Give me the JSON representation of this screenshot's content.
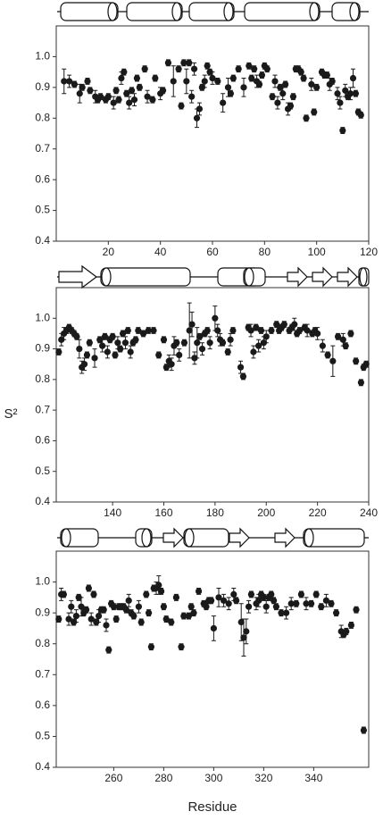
{
  "chart_data": [
    {
      "type": "scatter",
      "x": [
        3,
        5,
        7,
        9,
        10,
        12,
        13,
        15,
        16,
        17,
        19,
        20,
        22,
        23,
        24,
        25,
        26,
        27,
        28,
        29,
        30,
        31,
        32,
        34,
        35,
        37,
        38,
        40,
        41,
        43,
        45,
        47,
        48,
        49,
        50,
        51,
        52,
        53,
        54,
        55,
        56,
        57,
        58,
        59,
        60,
        62,
        64,
        66,
        67,
        68,
        70,
        72,
        74,
        75,
        76,
        77,
        78,
        79,
        80,
        81,
        83,
        84,
        85,
        86,
        87,
        88,
        89,
        90,
        91,
        92,
        93,
        94,
        95,
        96,
        98,
        99,
        100,
        102,
        103,
        104,
        105,
        106,
        108,
        109,
        110,
        111,
        112,
        113,
        114,
        115,
        116,
        117
      ],
      "values": [
        0.92,
        0.92,
        0.91,
        0.88,
        0.9,
        0.92,
        0.89,
        0.87,
        0.86,
        0.87,
        0.86,
        0.87,
        0.85,
        0.89,
        0.86,
        0.93,
        0.95,
        0.88,
        0.85,
        0.89,
        0.86,
        0.93,
        0.9,
        0.96,
        0.87,
        0.86,
        0.93,
        0.88,
        0.89,
        0.98,
        0.92,
        0.96,
        0.84,
        0.98,
        0.92,
        0.98,
        0.87,
        0.96,
        0.8,
        0.83,
        0.9,
        0.92,
        0.97,
        0.95,
        0.93,
        0.92,
        0.85,
        0.9,
        0.88,
        0.93,
        0.96,
        0.9,
        0.97,
        0.93,
        0.96,
        0.92,
        0.91,
        0.94,
        0.97,
        0.96,
        0.87,
        0.92,
        0.85,
        0.9,
        0.88,
        0.91,
        0.83,
        0.84,
        0.87,
        0.96,
        0.96,
        0.95,
        0.93,
        0.8,
        0.91,
        0.82,
        0.9,
        0.95,
        0.94,
        0.94,
        0.91,
        0.92,
        0.88,
        0.85,
        0.76,
        0.89,
        0.87,
        0.88,
        0.93,
        0.88,
        0.82,
        0.81
      ],
      "errors": [
        0.04,
        0.02,
        0.01,
        0.03,
        0.01,
        0.01,
        0.01,
        0.02,
        0.01,
        0.01,
        0.01,
        0.01,
        0.02,
        0.01,
        0.01,
        0.02,
        0.01,
        0.01,
        0.02,
        0.01,
        0.02,
        0.01,
        0.01,
        0.01,
        0.02,
        0.01,
        0.01,
        0.02,
        0.01,
        0.01,
        0.05,
        0.01,
        0.01,
        0.01,
        0.04,
        0.01,
        0.02,
        0.02,
        0.03,
        0.02,
        0.01,
        0.02,
        0.01,
        0.01,
        0.02,
        0.01,
        0.03,
        0.03,
        0.01,
        0.01,
        0.01,
        0.03,
        0.01,
        0.01,
        0.01,
        0.02,
        0.01,
        0.01,
        0.01,
        0.01,
        0.01,
        0.02,
        0.02,
        0.01,
        0.02,
        0.01,
        0.02,
        0.01,
        0.01,
        0.01,
        0.01,
        0.01,
        0.01,
        0.01,
        0.02,
        0.01,
        0.01,
        0.01,
        0.01,
        0.01,
        0.02,
        0.01,
        0.02,
        0.02,
        0.01,
        0.02,
        0.01,
        0.02,
        0.03,
        0.01,
        0.01,
        0.01
      ],
      "color": "#1a1a1a",
      "xlim": [
        0,
        120
      ],
      "xticks": [
        20,
        40,
        60,
        80,
        100,
        120
      ],
      "ylim": [
        0.4,
        1.1
      ],
      "yticks": [
        0.4,
        0.5,
        0.6,
        0.7,
        0.8,
        0.9,
        {
          "value": 1,
          "label": "1.0"
        }
      ]
    },
    {
      "type": "scatter",
      "y_label": "S²",
      "x": [
        119,
        120,
        121,
        122,
        123,
        124,
        125,
        126,
        127,
        128,
        129,
        130,
        131,
        133,
        135,
        136,
        137,
        138,
        139,
        140,
        141,
        142,
        143,
        144,
        145,
        146,
        147,
        148,
        149,
        150,
        152,
        154,
        156,
        158,
        160,
        161,
        162,
        163,
        164,
        165,
        166,
        168,
        170,
        171,
        172,
        173,
        174,
        175,
        176,
        177,
        178,
        180,
        181,
        182,
        183,
        185,
        186,
        187,
        190,
        191,
        193,
        194,
        195,
        196,
        197,
        198,
        199,
        200,
        202,
        204,
        205,
        206,
        207,
        209,
        210,
        211,
        212,
        213,
        215,
        216,
        218,
        219,
        220,
        222,
        224,
        226,
        228,
        230,
        231,
        233,
        235,
        237,
        238,
        239
      ],
      "values": [
        0.89,
        0.93,
        0.95,
        0.96,
        0.97,
        0.96,
        0.95,
        0.94,
        0.9,
        0.84,
        0.85,
        0.88,
        0.92,
        0.87,
        0.93,
        0.91,
        0.94,
        0.89,
        0.93,
        0.94,
        0.88,
        0.92,
        0.9,
        0.95,
        0.92,
        0.96,
        0.89,
        0.92,
        0.93,
        0.96,
        0.95,
        0.96,
        0.96,
        0.88,
        0.93,
        0.84,
        0.86,
        0.85,
        0.91,
        0.92,
        0.88,
        0.92,
        0.96,
        0.98,
        0.87,
        0.92,
        0.94,
        0.9,
        0.95,
        0.96,
        0.92,
        1.0,
        0.96,
        0.93,
        0.92,
        0.89,
        0.93,
        0.96,
        0.84,
        0.81,
        0.97,
        0.96,
        0.89,
        0.97,
        0.91,
        0.96,
        0.92,
        0.94,
        0.96,
        0.98,
        0.96,
        0.97,
        0.98,
        0.96,
        0.97,
        0.98,
        0.95,
        0.96,
        0.97,
        0.96,
        0.95,
        0.96,
        0.95,
        0.91,
        0.88,
        0.86,
        0.94,
        0.93,
        0.91,
        0.95,
        0.86,
        0.79,
        0.84,
        0.85
      ],
      "errors": [
        0.01,
        0.02,
        0.02,
        0.01,
        0.01,
        0.01,
        0.01,
        0.01,
        0.03,
        0.02,
        0.02,
        0.01,
        0.01,
        0.03,
        0.01,
        0.02,
        0.01,
        0.02,
        0.01,
        0.01,
        0.01,
        0.02,
        0.01,
        0.01,
        0.02,
        0.01,
        0.02,
        0.01,
        0.01,
        0.01,
        0.01,
        0.01,
        0.01,
        0.01,
        0.01,
        0.01,
        0.02,
        0.02,
        0.03,
        0.01,
        0.02,
        0.01,
        0.09,
        0.04,
        0.02,
        0.05,
        0.01,
        0.02,
        0.01,
        0.01,
        0.02,
        0.04,
        0.02,
        0.02,
        0.01,
        0.01,
        0.02,
        0.01,
        0.02,
        0.01,
        0.01,
        0.02,
        0.02,
        0.01,
        0.02,
        0.01,
        0.02,
        0.02,
        0.01,
        0.01,
        0.01,
        0.01,
        0.01,
        0.01,
        0.01,
        0.02,
        0.01,
        0.01,
        0.01,
        0.02,
        0.01,
        0.01,
        0.02,
        0.02,
        0.01,
        0.05,
        0.01,
        0.02,
        0.01,
        0.01,
        0.01,
        0.01,
        0.01,
        0.01
      ],
      "color": "#1a1a1a",
      "xlim": [
        118,
        240
      ],
      "xticks": [
        140,
        160,
        180,
        200,
        220,
        240
      ],
      "ylim": [
        0.4,
        1.1
      ],
      "yticks": [
        0.4,
        0.5,
        0.6,
        0.7,
        0.8,
        0.9,
        {
          "value": 1,
          "label": "1.0"
        }
      ]
    },
    {
      "type": "scatter",
      "x_label": "Residue",
      "x": [
        238,
        239,
        240,
        242,
        243,
        244,
        245,
        246,
        247,
        248,
        249,
        250,
        251,
        252,
        253,
        254,
        255,
        256,
        257,
        258,
        259,
        260,
        261,
        262,
        263,
        264,
        265,
        266,
        267,
        268,
        270,
        271,
        273,
        274,
        275,
        276,
        277,
        278,
        279,
        280,
        281,
        283,
        285,
        287,
        288,
        290,
        291,
        292,
        294,
        296,
        297,
        298,
        299,
        300,
        302,
        304,
        306,
        308,
        309,
        311,
        312,
        313,
        314,
        315,
        317,
        318,
        319,
        320,
        321,
        322,
        323,
        324,
        325,
        327,
        329,
        331,
        333,
        335,
        337,
        339,
        341,
        343,
        345,
        347,
        349,
        351,
        352,
        353,
        355,
        357,
        360
      ],
      "values": [
        0.88,
        0.96,
        0.96,
        0.88,
        0.92,
        0.87,
        0.89,
        0.95,
        0.92,
        0.9,
        0.91,
        0.98,
        0.88,
        0.96,
        0.87,
        0.89,
        0.91,
        0.91,
        0.86,
        0.78,
        0.93,
        0.92,
        0.88,
        0.92,
        0.92,
        0.92,
        0.91,
        0.94,
        0.9,
        0.89,
        0.92,
        0.87,
        0.96,
        0.9,
        0.79,
        0.98,
        0.98,
        0.99,
        0.97,
        0.92,
        0.88,
        0.87,
        0.95,
        0.79,
        0.89,
        0.89,
        0.92,
        0.9,
        0.97,
        0.93,
        0.92,
        0.94,
        0.94,
        0.85,
        0.95,
        0.94,
        0.93,
        0.96,
        0.94,
        0.87,
        0.82,
        0.84,
        0.92,
        0.96,
        0.93,
        0.94,
        0.96,
        0.95,
        0.92,
        0.95,
        0.96,
        0.94,
        0.92,
        0.9,
        0.9,
        0.93,
        0.93,
        0.96,
        0.93,
        0.93,
        0.96,
        0.92,
        0.94,
        0.93,
        0.9,
        0.84,
        0.83,
        0.84,
        0.86,
        0.91,
        0.52
      ],
      "errors": [
        0.01,
        0.02,
        0.01,
        0.02,
        0.02,
        0.01,
        0.02,
        0.01,
        0.03,
        0.01,
        0.01,
        0.01,
        0.02,
        0.01,
        0.01,
        0.02,
        0.01,
        0.01,
        0.02,
        0.01,
        0.01,
        0.01,
        0.01,
        0.01,
        0.01,
        0.01,
        0.01,
        0.02,
        0.01,
        0.01,
        0.02,
        0.01,
        0.01,
        0.01,
        0.01,
        0.01,
        0.02,
        0.03,
        0.01,
        0.01,
        0.01,
        0.01,
        0.01,
        0.01,
        0.01,
        0.01,
        0.01,
        0.01,
        0.01,
        0.01,
        0.01,
        0.01,
        0.01,
        0.04,
        0.03,
        0.02,
        0.02,
        0.02,
        0.01,
        0.06,
        0.06,
        0.04,
        0.02,
        0.01,
        0.02,
        0.02,
        0.01,
        0.01,
        0.02,
        0.01,
        0.01,
        0.01,
        0.01,
        0.01,
        0.02,
        0.02,
        0.01,
        0.01,
        0.02,
        0.01,
        0.01,
        0.01,
        0.02,
        0.01,
        0.01,
        0.02,
        0.01,
        0.01,
        0.01,
        0.01,
        0.01
      ],
      "color": "#1a1a1a",
      "xlim": [
        237,
        362
      ],
      "xticks": [
        260,
        280,
        300,
        320,
        340
      ],
      "ylim": [
        0.4,
        1.1
      ],
      "yticks": [
        0.4,
        0.5,
        0.6,
        0.7,
        0.8,
        0.9,
        {
          "value": 1,
          "label": "1.0"
        }
      ]
    }
  ]
}
